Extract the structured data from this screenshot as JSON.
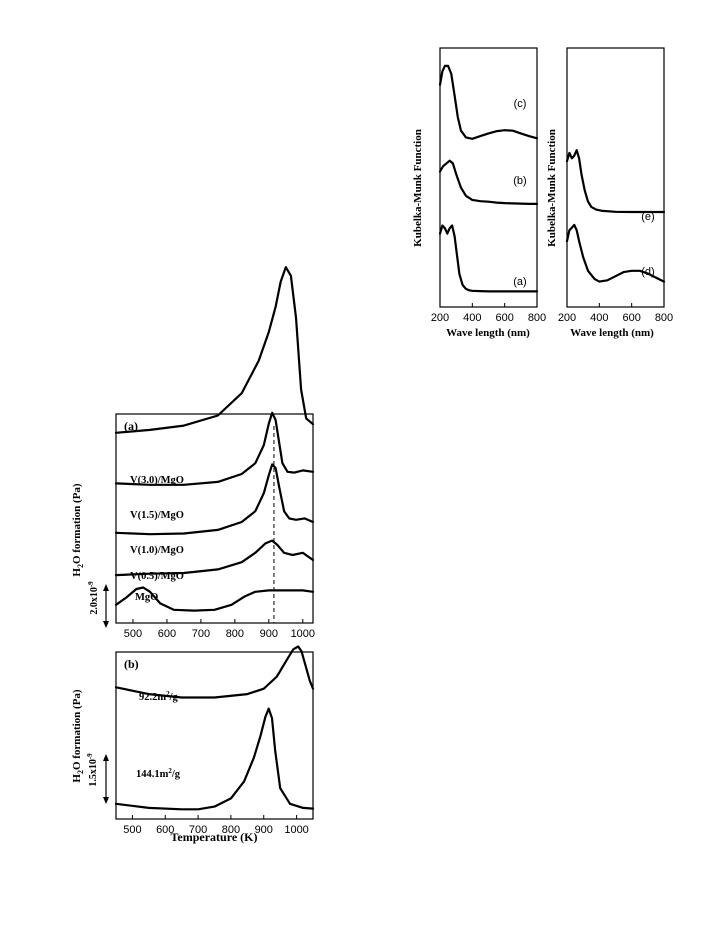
{
  "chart_data": [
    {
      "id": "uv_left",
      "type": "line",
      "xlabel": "Wave length (nm)",
      "ylabel": "Kubelka-Munk Function",
      "xlim": [
        200,
        800
      ],
      "xticks": [
        200,
        400,
        600,
        800
      ],
      "series": [
        {
          "name": "(c)",
          "offset": 0.62,
          "x": [
            200,
            215,
            230,
            250,
            270,
            290,
            310,
            330,
            360,
            400,
            450,
            500,
            550,
            600,
            650,
            700,
            750,
            800
          ],
          "y": [
            0.22,
            0.27,
            0.29,
            0.29,
            0.26,
            0.18,
            0.1,
            0.05,
            0.025,
            0.02,
            0.03,
            0.04,
            0.048,
            0.052,
            0.05,
            0.04,
            0.03,
            0.022
          ]
        },
        {
          "name": "(b)",
          "offset": 0.36,
          "x": [
            200,
            220,
            240,
            260,
            280,
            300,
            330,
            360,
            400,
            450,
            500,
            550,
            600,
            650,
            700,
            750,
            800
          ],
          "y": [
            0.13,
            0.15,
            0.16,
            0.17,
            0.16,
            0.12,
            0.07,
            0.04,
            0.025,
            0.02,
            0.018,
            0.015,
            0.013,
            0.012,
            0.011,
            0.01,
            0.01
          ]
        },
        {
          "name": "(a)",
          "offset": 0.0,
          "x": [
            200,
            215,
            230,
            245,
            260,
            275,
            290,
            305,
            320,
            340,
            360,
            380,
            400,
            450,
            500,
            600,
            700,
            800
          ],
          "y": [
            0.22,
            0.25,
            0.24,
            0.22,
            0.24,
            0.25,
            0.21,
            0.14,
            0.07,
            0.03,
            0.015,
            0.01,
            0.008,
            0.007,
            0.006,
            0.006,
            0.006,
            0.006
          ]
        }
      ]
    },
    {
      "id": "uv_right",
      "type": "line",
      "xlabel": "Wave length (nm)",
      "ylabel": "Kubelka-Munk Function",
      "xlim": [
        200,
        800
      ],
      "xticks": [
        200,
        400,
        600,
        800
      ],
      "series": [
        {
          "name": "(e)",
          "offset": 0.3,
          "x": [
            200,
            215,
            230,
            245,
            260,
            275,
            290,
            310,
            330,
            350,
            380,
            420,
            500,
            600,
            700,
            800
          ],
          "y": [
            0.2,
            0.23,
            0.21,
            0.22,
            0.24,
            0.21,
            0.15,
            0.09,
            0.05,
            0.03,
            0.02,
            0.015,
            0.012,
            0.011,
            0.011,
            0.011
          ]
        },
        {
          "name": "(d)",
          "offset": 0.0,
          "x": [
            200,
            215,
            230,
            245,
            260,
            275,
            300,
            330,
            370,
            400,
            450,
            500,
            550,
            600,
            650,
            700,
            750,
            800
          ],
          "y": [
            0.17,
            0.21,
            0.22,
            0.23,
            0.21,
            0.17,
            0.11,
            0.06,
            0.03,
            0.02,
            0.025,
            0.04,
            0.055,
            0.06,
            0.06,
            0.05,
            0.035,
            0.02
          ]
        }
      ]
    },
    {
      "id": "tpr_a",
      "type": "line",
      "panel_label": "(a)",
      "ylabel": "H2O formation (Pa)",
      "scale_bar": "2.0x10-9",
      "xlim": [
        450,
        1030
      ],
      "xticks": [
        500,
        600,
        700,
        800,
        900,
        1000
      ],
      "reference_line_x": 915,
      "series": [
        {
          "name": "V(3.0)/MgO",
          "offset": 0.86,
          "x": [
            450,
            550,
            650,
            750,
            820,
            870,
            900,
            920,
            935,
            950,
            965,
            980,
            995,
            1010,
            1030
          ],
          "y": [
            0.1,
            0.14,
            0.2,
            0.34,
            0.65,
            1.1,
            1.5,
            1.85,
            2.2,
            2.4,
            2.28,
            1.7,
            0.7,
            0.3,
            0.22
          ]
        },
        {
          "name": "V(1.5)/MgO",
          "offset": 0.6,
          "x": [
            450,
            550,
            650,
            750,
            820,
            860,
            885,
            900,
            910,
            920,
            930,
            940,
            955,
            975,
            1000,
            1030
          ],
          "y": [
            0.12,
            0.1,
            0.1,
            0.14,
            0.25,
            0.4,
            0.65,
            0.95,
            1.1,
            1.0,
            0.7,
            0.4,
            0.28,
            0.27,
            0.3,
            0.28
          ]
        },
        {
          "name": "V(1.0)/MgO",
          "offset": 0.36,
          "x": [
            450,
            550,
            650,
            750,
            820,
            860,
            885,
            900,
            910,
            920,
            930,
            945,
            960,
            980,
            1005,
            1030
          ],
          "y": [
            0.1,
            0.08,
            0.09,
            0.14,
            0.25,
            0.4,
            0.65,
            0.9,
            1.05,
            1.0,
            0.75,
            0.4,
            0.3,
            0.28,
            0.3,
            0.25
          ]
        },
        {
          "name": "V(0.5)/MgO",
          "offset": 0.17,
          "x": [
            450,
            550,
            650,
            750,
            820,
            860,
            890,
            910,
            925,
            945,
            970,
            1000,
            1030
          ],
          "y": [
            0.04,
            0.06,
            0.07,
            0.12,
            0.22,
            0.35,
            0.48,
            0.52,
            0.46,
            0.35,
            0.32,
            0.35,
            0.25
          ]
        },
        {
          "name": "MgO",
          "offset": 0.0,
          "x": [
            450,
            480,
            510,
            530,
            550,
            580,
            620,
            680,
            740,
            790,
            830,
            860,
            900,
            950,
            1000,
            1030
          ],
          "y": [
            0.1,
            0.2,
            0.32,
            0.34,
            0.28,
            0.12,
            0.03,
            0.02,
            0.03,
            0.1,
            0.22,
            0.28,
            0.3,
            0.3,
            0.3,
            0.28
          ]
        }
      ]
    },
    {
      "id": "tpr_b",
      "type": "line",
      "panel_label": "(b)",
      "xlabel": "Temperature  (K)",
      "ylabel": "H2O formation (Pa)",
      "scale_bar": "1.5x10-9",
      "xlim": [
        450,
        1050
      ],
      "xticks": [
        500,
        600,
        700,
        800,
        900,
        1000
      ],
      "series": [
        {
          "name": "92.2m2/g",
          "offset": 0.55,
          "x": [
            450,
            550,
            650,
            750,
            850,
            900,
            940,
            970,
            990,
            1005,
            1015,
            1025,
            1040,
            1050
          ],
          "y": [
            0.62,
            0.52,
            0.47,
            0.47,
            0.52,
            0.6,
            0.78,
            1.02,
            1.18,
            1.22,
            1.15,
            0.98,
            0.72,
            0.6
          ]
        },
        {
          "name": "144.1m2/g",
          "offset": 0.0,
          "x": [
            450,
            550,
            650,
            700,
            750,
            800,
            840,
            870,
            890,
            905,
            915,
            925,
            935,
            950,
            980,
            1020,
            1050
          ],
          "y": [
            0.12,
            0.06,
            0.04,
            0.04,
            0.08,
            0.2,
            0.45,
            0.8,
            1.12,
            1.4,
            1.52,
            1.38,
            0.9,
            0.35,
            0.12,
            0.06,
            0.05
          ]
        }
      ]
    }
  ]
}
